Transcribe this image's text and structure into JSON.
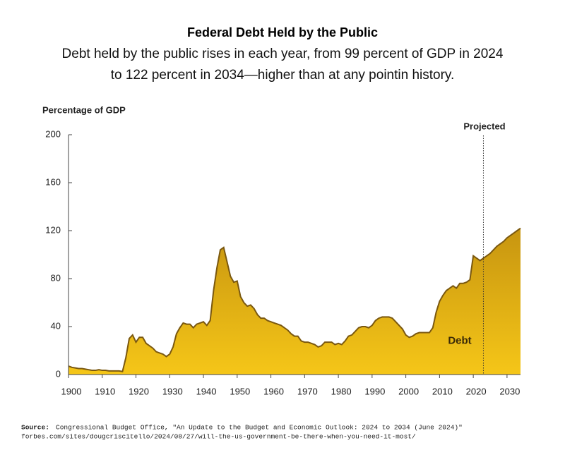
{
  "chart_data": {
    "type": "area",
    "title": "Federal Debt Held by the Public",
    "subtitle": [
      {
        "text": "Debt held by the public rises in each year, from ",
        "bold": false
      },
      {
        "text": "99 percent of GDP in 2024",
        "bold": true
      },
      {
        "text": "to 122 percent in 2034",
        "bold": true
      },
      {
        "text": "—higher than at any pointin history.",
        "bold": false
      }
    ],
    "y_axis_label": "Percentage of GDP",
    "projection_label": "Projected",
    "projection_start": 2023,
    "series": [
      {
        "name": "Debt",
        "color": "#e0ad12",
        "values": [
          7,
          6,
          5.5,
          5,
          5,
          4.5,
          4,
          3.5,
          3.5,
          4,
          3.5,
          3.5,
          3,
          3,
          3,
          3,
          2.5,
          14,
          30,
          33,
          27,
          31,
          31,
          26,
          24,
          22,
          19,
          18,
          17,
          15,
          17,
          23,
          34,
          39,
          43,
          42,
          42,
          39,
          42,
          43,
          44,
          41,
          45,
          70,
          89,
          104,
          106,
          94,
          82,
          77,
          78,
          65,
          60,
          57,
          58,
          55,
          50,
          47,
          47,
          45,
          44,
          43,
          42,
          41,
          39,
          37,
          34,
          32,
          32,
          28,
          27,
          27,
          26,
          25,
          23,
          24,
          27,
          27,
          27,
          25,
          26,
          25,
          28,
          32,
          33,
          36,
          39,
          40,
          40,
          39,
          41,
          45,
          47,
          48,
          48,
          48,
          47,
          44,
          41,
          38,
          33,
          31,
          32,
          34,
          35,
          35,
          35,
          35,
          39,
          52,
          61,
          66,
          70,
          72,
          74,
          72,
          76,
          76,
          77,
          79,
          99,
          97,
          95,
          97,
          99,
          101,
          104,
          107,
          109,
          111,
          114,
          116,
          118,
          120,
          122
        ]
      }
    ],
    "x": [
      1900,
      1901,
      1902,
      1903,
      1904,
      1905,
      1906,
      1907,
      1908,
      1909,
      1910,
      1911,
      1912,
      1913,
      1914,
      1915,
      1916,
      1917,
      1918,
      1919,
      1920,
      1921,
      1922,
      1923,
      1924,
      1925,
      1926,
      1927,
      1928,
      1929,
      1930,
      1931,
      1932,
      1933,
      1934,
      1935,
      1936,
      1937,
      1938,
      1939,
      1940,
      1941,
      1942,
      1943,
      1944,
      1945,
      1946,
      1947,
      1948,
      1949,
      1950,
      1951,
      1952,
      1953,
      1954,
      1955,
      1956,
      1957,
      1958,
      1959,
      1960,
      1961,
      1962,
      1963,
      1964,
      1965,
      1966,
      1967,
      1968,
      1969,
      1970,
      1971,
      1972,
      1973,
      1974,
      1975,
      1976,
      1977,
      1978,
      1979,
      1980,
      1981,
      1982,
      1983,
      1984,
      1985,
      1986,
      1987,
      1988,
      1989,
      1990,
      1991,
      1992,
      1993,
      1994,
      1995,
      1996,
      1997,
      1998,
      1999,
      2000,
      2001,
      2002,
      2003,
      2004,
      2005,
      2006,
      2007,
      2008,
      2009,
      2010,
      2011,
      2012,
      2013,
      2014,
      2015,
      2016,
      2017,
      2018,
      2019,
      2020,
      2021,
      2022,
      2023,
      2024,
      2025,
      2026,
      2027,
      2028,
      2029,
      2030,
      2031,
      2032,
      2033,
      2034
    ],
    "xlim": [
      1900,
      2034
    ],
    "xticks": [
      1900,
      1910,
      1920,
      1930,
      1940,
      1950,
      1960,
      1970,
      1980,
      1990,
      2000,
      2010,
      2020,
      2030
    ],
    "ylim": [
      0,
      200
    ],
    "yticks": [
      0,
      40,
      80,
      120,
      160,
      200
    ],
    "source": {
      "label": "Source:",
      "text": "Congressional Budget Office, \"An Update to the Budget and Economic Outlook: 2024 to 2034 (June 2024)\"",
      "url": "forbes.com/sites/dougcriscitello/2024/08/27/will-the-us-government-be-there-when-you-need-it-most/"
    }
  }
}
